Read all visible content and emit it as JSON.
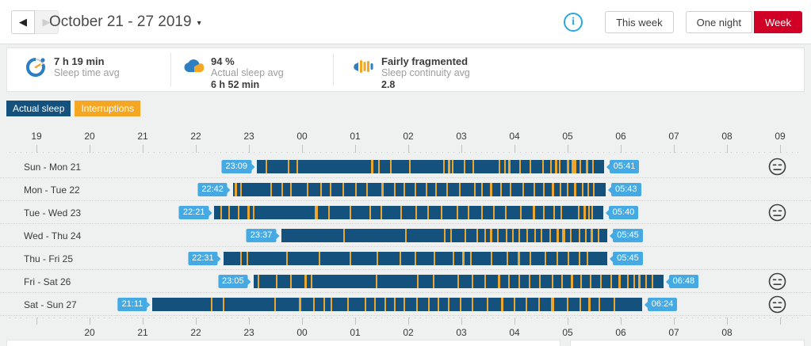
{
  "header": {
    "title": "October 21 - 27 2019",
    "buttons": {
      "this_week": "This week",
      "one_night": "One night",
      "week": "Week"
    },
    "icons": {
      "back": "◀",
      "forward": "▶",
      "caret": "▾",
      "info": "i"
    }
  },
  "summary": {
    "sleep_time": {
      "value": "7 h 19 min",
      "label": "Sleep time avg",
      "icon": "sleep-clock-icon"
    },
    "actual_sleep": {
      "value": "94 %",
      "label": "Actual sleep avg",
      "extra": "6 h 52 min",
      "icon": "sleep-cloud-icon"
    },
    "continuity": {
      "value": "Fairly fragmented",
      "label": "Sleep continuity avg",
      "extra": "2.8",
      "icon": "fragmentation-icon"
    }
  },
  "legend": [
    {
      "label": "Actual sleep",
      "color": "#14517d"
    },
    {
      "label": "Interruptions",
      "color": "#f5a623"
    }
  ],
  "colors": {
    "bar": "#14517d",
    "interruption": "#eaa62f",
    "badge": "#45aae3",
    "accent_red": "#d10027",
    "mood_stroke": "#3d3d3d"
  },
  "chart_data": {
    "type": "timeline",
    "title": "Weekly sleep timeline",
    "axis_start_hour": 19,
    "axis_end_hour": 33,
    "top_axis_labels": [
      "19",
      "20",
      "21",
      "22",
      "23",
      "00",
      "01",
      "02",
      "03",
      "04",
      "05",
      "06",
      "07",
      "08",
      "09"
    ],
    "bottom_axis_labels": [
      "20",
      "21",
      "22",
      "23",
      "00",
      "01",
      "02",
      "03",
      "04",
      "05",
      "06",
      "07",
      "08"
    ],
    "rows": [
      {
        "day": "Sun - Mon 21",
        "start": "23:09",
        "end": "05:41",
        "mood_icon": true,
        "interruptions": [
          [
            0.025,
            2
          ],
          [
            0.09,
            2
          ],
          [
            0.115,
            2
          ],
          [
            0.33,
            3
          ],
          [
            0.35,
            2
          ],
          [
            0.385,
            2
          ],
          [
            0.44,
            2
          ],
          [
            0.54,
            2
          ],
          [
            0.555,
            3
          ],
          [
            0.565,
            2
          ],
          [
            0.6,
            2
          ],
          [
            0.625,
            2
          ],
          [
            0.7,
            2
          ],
          [
            0.715,
            2
          ],
          [
            0.73,
            3
          ],
          [
            0.76,
            2
          ],
          [
            0.79,
            2
          ],
          [
            0.825,
            2
          ],
          [
            0.85,
            2
          ],
          [
            0.865,
            3
          ],
          [
            0.875,
            2
          ],
          [
            0.9,
            3
          ],
          [
            0.91,
            2
          ],
          [
            0.92,
            4
          ],
          [
            0.935,
            2
          ],
          [
            0.955,
            3
          ],
          [
            0.97,
            2
          ]
        ]
      },
      {
        "day": "Mon - Tue 22",
        "start": "22:42",
        "end": "05:43",
        "mood_icon": false,
        "interruptions": [
          [
            0.005,
            3
          ],
          [
            0.02,
            2
          ],
          [
            0.1,
            2
          ],
          [
            0.13,
            2
          ],
          [
            0.155,
            2
          ],
          [
            0.2,
            2
          ],
          [
            0.235,
            2
          ],
          [
            0.26,
            2
          ],
          [
            0.295,
            2
          ],
          [
            0.33,
            2
          ],
          [
            0.36,
            2
          ],
          [
            0.4,
            3
          ],
          [
            0.435,
            2
          ],
          [
            0.46,
            2
          ],
          [
            0.49,
            2
          ],
          [
            0.52,
            2
          ],
          [
            0.545,
            2
          ],
          [
            0.575,
            2
          ],
          [
            0.61,
            2
          ],
          [
            0.65,
            2
          ],
          [
            0.67,
            2
          ],
          [
            0.695,
            3
          ],
          [
            0.72,
            2
          ],
          [
            0.745,
            2
          ],
          [
            0.78,
            2
          ],
          [
            0.81,
            2
          ],
          [
            0.835,
            2
          ],
          [
            0.86,
            3
          ],
          [
            0.88,
            2
          ],
          [
            0.9,
            2
          ],
          [
            0.92,
            3
          ],
          [
            0.94,
            2
          ],
          [
            0.955,
            2
          ],
          [
            0.97,
            2
          ]
        ]
      },
      {
        "day": "Tue - Wed 23",
        "start": "22:21",
        "end": "05:40",
        "mood_icon": true,
        "interruptions": [
          [
            0.015,
            2
          ],
          [
            0.035,
            2
          ],
          [
            0.06,
            2
          ],
          [
            0.085,
            3
          ],
          [
            0.1,
            2
          ],
          [
            0.26,
            4
          ],
          [
            0.295,
            2
          ],
          [
            0.35,
            2
          ],
          [
            0.4,
            2
          ],
          [
            0.43,
            2
          ],
          [
            0.48,
            2
          ],
          [
            0.52,
            2
          ],
          [
            0.55,
            2
          ],
          [
            0.585,
            2
          ],
          [
            0.625,
            2
          ],
          [
            0.655,
            2
          ],
          [
            0.69,
            2
          ],
          [
            0.72,
            2
          ],
          [
            0.75,
            2
          ],
          [
            0.79,
            2
          ],
          [
            0.825,
            3
          ],
          [
            0.85,
            2
          ],
          [
            0.875,
            2
          ],
          [
            0.895,
            2
          ],
          [
            0.94,
            2
          ],
          [
            0.955,
            3
          ],
          [
            0.965,
            2
          ],
          [
            0.975,
            2
          ]
        ]
      },
      {
        "day": "Wed - Thu 24",
        "start": "23:37",
        "end": "05:45",
        "mood_icon": false,
        "interruptions": [
          [
            0.19,
            2
          ],
          [
            0.38,
            2
          ],
          [
            0.5,
            2
          ],
          [
            0.52,
            2
          ],
          [
            0.565,
            2
          ],
          [
            0.6,
            2
          ],
          [
            0.625,
            2
          ],
          [
            0.645,
            3
          ],
          [
            0.665,
            2
          ],
          [
            0.69,
            2
          ],
          [
            0.71,
            2
          ],
          [
            0.73,
            2
          ],
          [
            0.755,
            2
          ],
          [
            0.78,
            2
          ],
          [
            0.8,
            2
          ],
          [
            0.825,
            2
          ],
          [
            0.85,
            3
          ],
          [
            0.87,
            4
          ],
          [
            0.89,
            2
          ],
          [
            0.915,
            2
          ],
          [
            0.935,
            2
          ],
          [
            0.955,
            3
          ],
          [
            0.975,
            2
          ]
        ]
      },
      {
        "day": "Thu - Fri 25",
        "start": "22:31",
        "end": "05:45",
        "mood_icon": false,
        "interruptions": [
          [
            0.045,
            2
          ],
          [
            0.06,
            2
          ],
          [
            0.165,
            2
          ],
          [
            0.25,
            2
          ],
          [
            0.33,
            2
          ],
          [
            0.4,
            2
          ],
          [
            0.46,
            2
          ],
          [
            0.5,
            2
          ],
          [
            0.55,
            2
          ],
          [
            0.6,
            2
          ],
          [
            0.625,
            3
          ],
          [
            0.645,
            2
          ],
          [
            0.7,
            2
          ],
          [
            0.74,
            2
          ],
          [
            0.77,
            3
          ],
          [
            0.8,
            2
          ],
          [
            0.84,
            2
          ],
          [
            0.87,
            2
          ],
          [
            0.9,
            2
          ],
          [
            0.93,
            2
          ],
          [
            0.95,
            2
          ]
        ]
      },
      {
        "day": "Fri - Sat 26",
        "start": "23:05",
        "end": "06:48",
        "mood_icon": true,
        "interruptions": [
          [
            0.01,
            2
          ],
          [
            0.055,
            2
          ],
          [
            0.09,
            2
          ],
          [
            0.125,
            3
          ],
          [
            0.14,
            2
          ],
          [
            0.3,
            2
          ],
          [
            0.4,
            2
          ],
          [
            0.44,
            2
          ],
          [
            0.5,
            2
          ],
          [
            0.535,
            2
          ],
          [
            0.565,
            2
          ],
          [
            0.6,
            3
          ],
          [
            0.625,
            2
          ],
          [
            0.65,
            2
          ],
          [
            0.675,
            2
          ],
          [
            0.7,
            2
          ],
          [
            0.73,
            2
          ],
          [
            0.755,
            2
          ],
          [
            0.78,
            3
          ],
          [
            0.8,
            2
          ],
          [
            0.825,
            2
          ],
          [
            0.85,
            2
          ],
          [
            0.875,
            2
          ],
          [
            0.895,
            3
          ],
          [
            0.915,
            2
          ],
          [
            0.93,
            2
          ],
          [
            0.945,
            3
          ],
          [
            0.96,
            2
          ],
          [
            0.975,
            2
          ]
        ]
      },
      {
        "day": "Sat - Sun 27",
        "start": "21:11",
        "end": "06:24",
        "mood_icon": true,
        "interruptions": [
          [
            0.12,
            2
          ],
          [
            0.145,
            2
          ],
          [
            0.25,
            2
          ],
          [
            0.3,
            3
          ],
          [
            0.33,
            2
          ],
          [
            0.35,
            2
          ],
          [
            0.365,
            2
          ],
          [
            0.4,
            2
          ],
          [
            0.435,
            2
          ],
          [
            0.455,
            2
          ],
          [
            0.475,
            2
          ],
          [
            0.495,
            2
          ],
          [
            0.515,
            2
          ],
          [
            0.54,
            2
          ],
          [
            0.565,
            2
          ],
          [
            0.585,
            2
          ],
          [
            0.605,
            2
          ],
          [
            0.63,
            2
          ],
          [
            0.655,
            2
          ],
          [
            0.685,
            2
          ],
          [
            0.715,
            3
          ],
          [
            0.74,
            2
          ],
          [
            0.765,
            2
          ],
          [
            0.79,
            2
          ],
          [
            0.82,
            4
          ],
          [
            0.85,
            2
          ],
          [
            0.875,
            2
          ],
          [
            0.895,
            3
          ],
          [
            0.915,
            2
          ],
          [
            0.945,
            2
          ]
        ]
      }
    ]
  }
}
